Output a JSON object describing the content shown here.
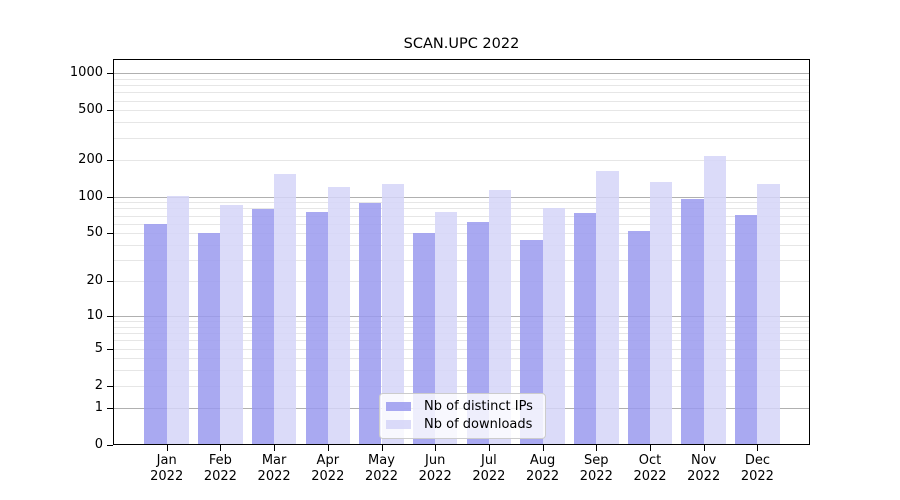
{
  "chart_data": {
    "type": "bar",
    "title": "SCAN.UPC 2022",
    "categories": [
      "Jan",
      "Feb",
      "Mar",
      "Apr",
      "May",
      "Jun",
      "Jul",
      "Aug",
      "Sep",
      "Oct",
      "Nov",
      "Dec"
    ],
    "year": "2022",
    "series": [
      {
        "name": "Nb of distinct IPs",
        "color": "rgba(154,154,238,0.85)",
        "values": [
          60,
          50,
          79,
          75,
          89,
          50,
          62,
          44,
          73,
          52,
          95,
          71
        ]
      },
      {
        "name": "Nb of downloads",
        "color": "rgba(213,213,248,0.85)",
        "values": [
          101,
          85,
          153,
          120,
          126,
          75,
          113,
          81,
          162,
          131,
          214,
          127
        ]
      }
    ],
    "y_axis": {
      "scale": "log1p",
      "ticks": [
        0,
        1,
        2,
        5,
        10,
        20,
        50,
        100,
        200,
        500,
        1000
      ],
      "max": 1300,
      "major_gridlines": [
        1,
        10,
        100,
        1000
      ]
    },
    "grid": {
      "major_color": "#b0b0b0",
      "minor_color": "#e6e6e6"
    },
    "legend": {
      "position": "lower-center"
    },
    "background": "#ffffff",
    "frame_color": "#000000"
  }
}
